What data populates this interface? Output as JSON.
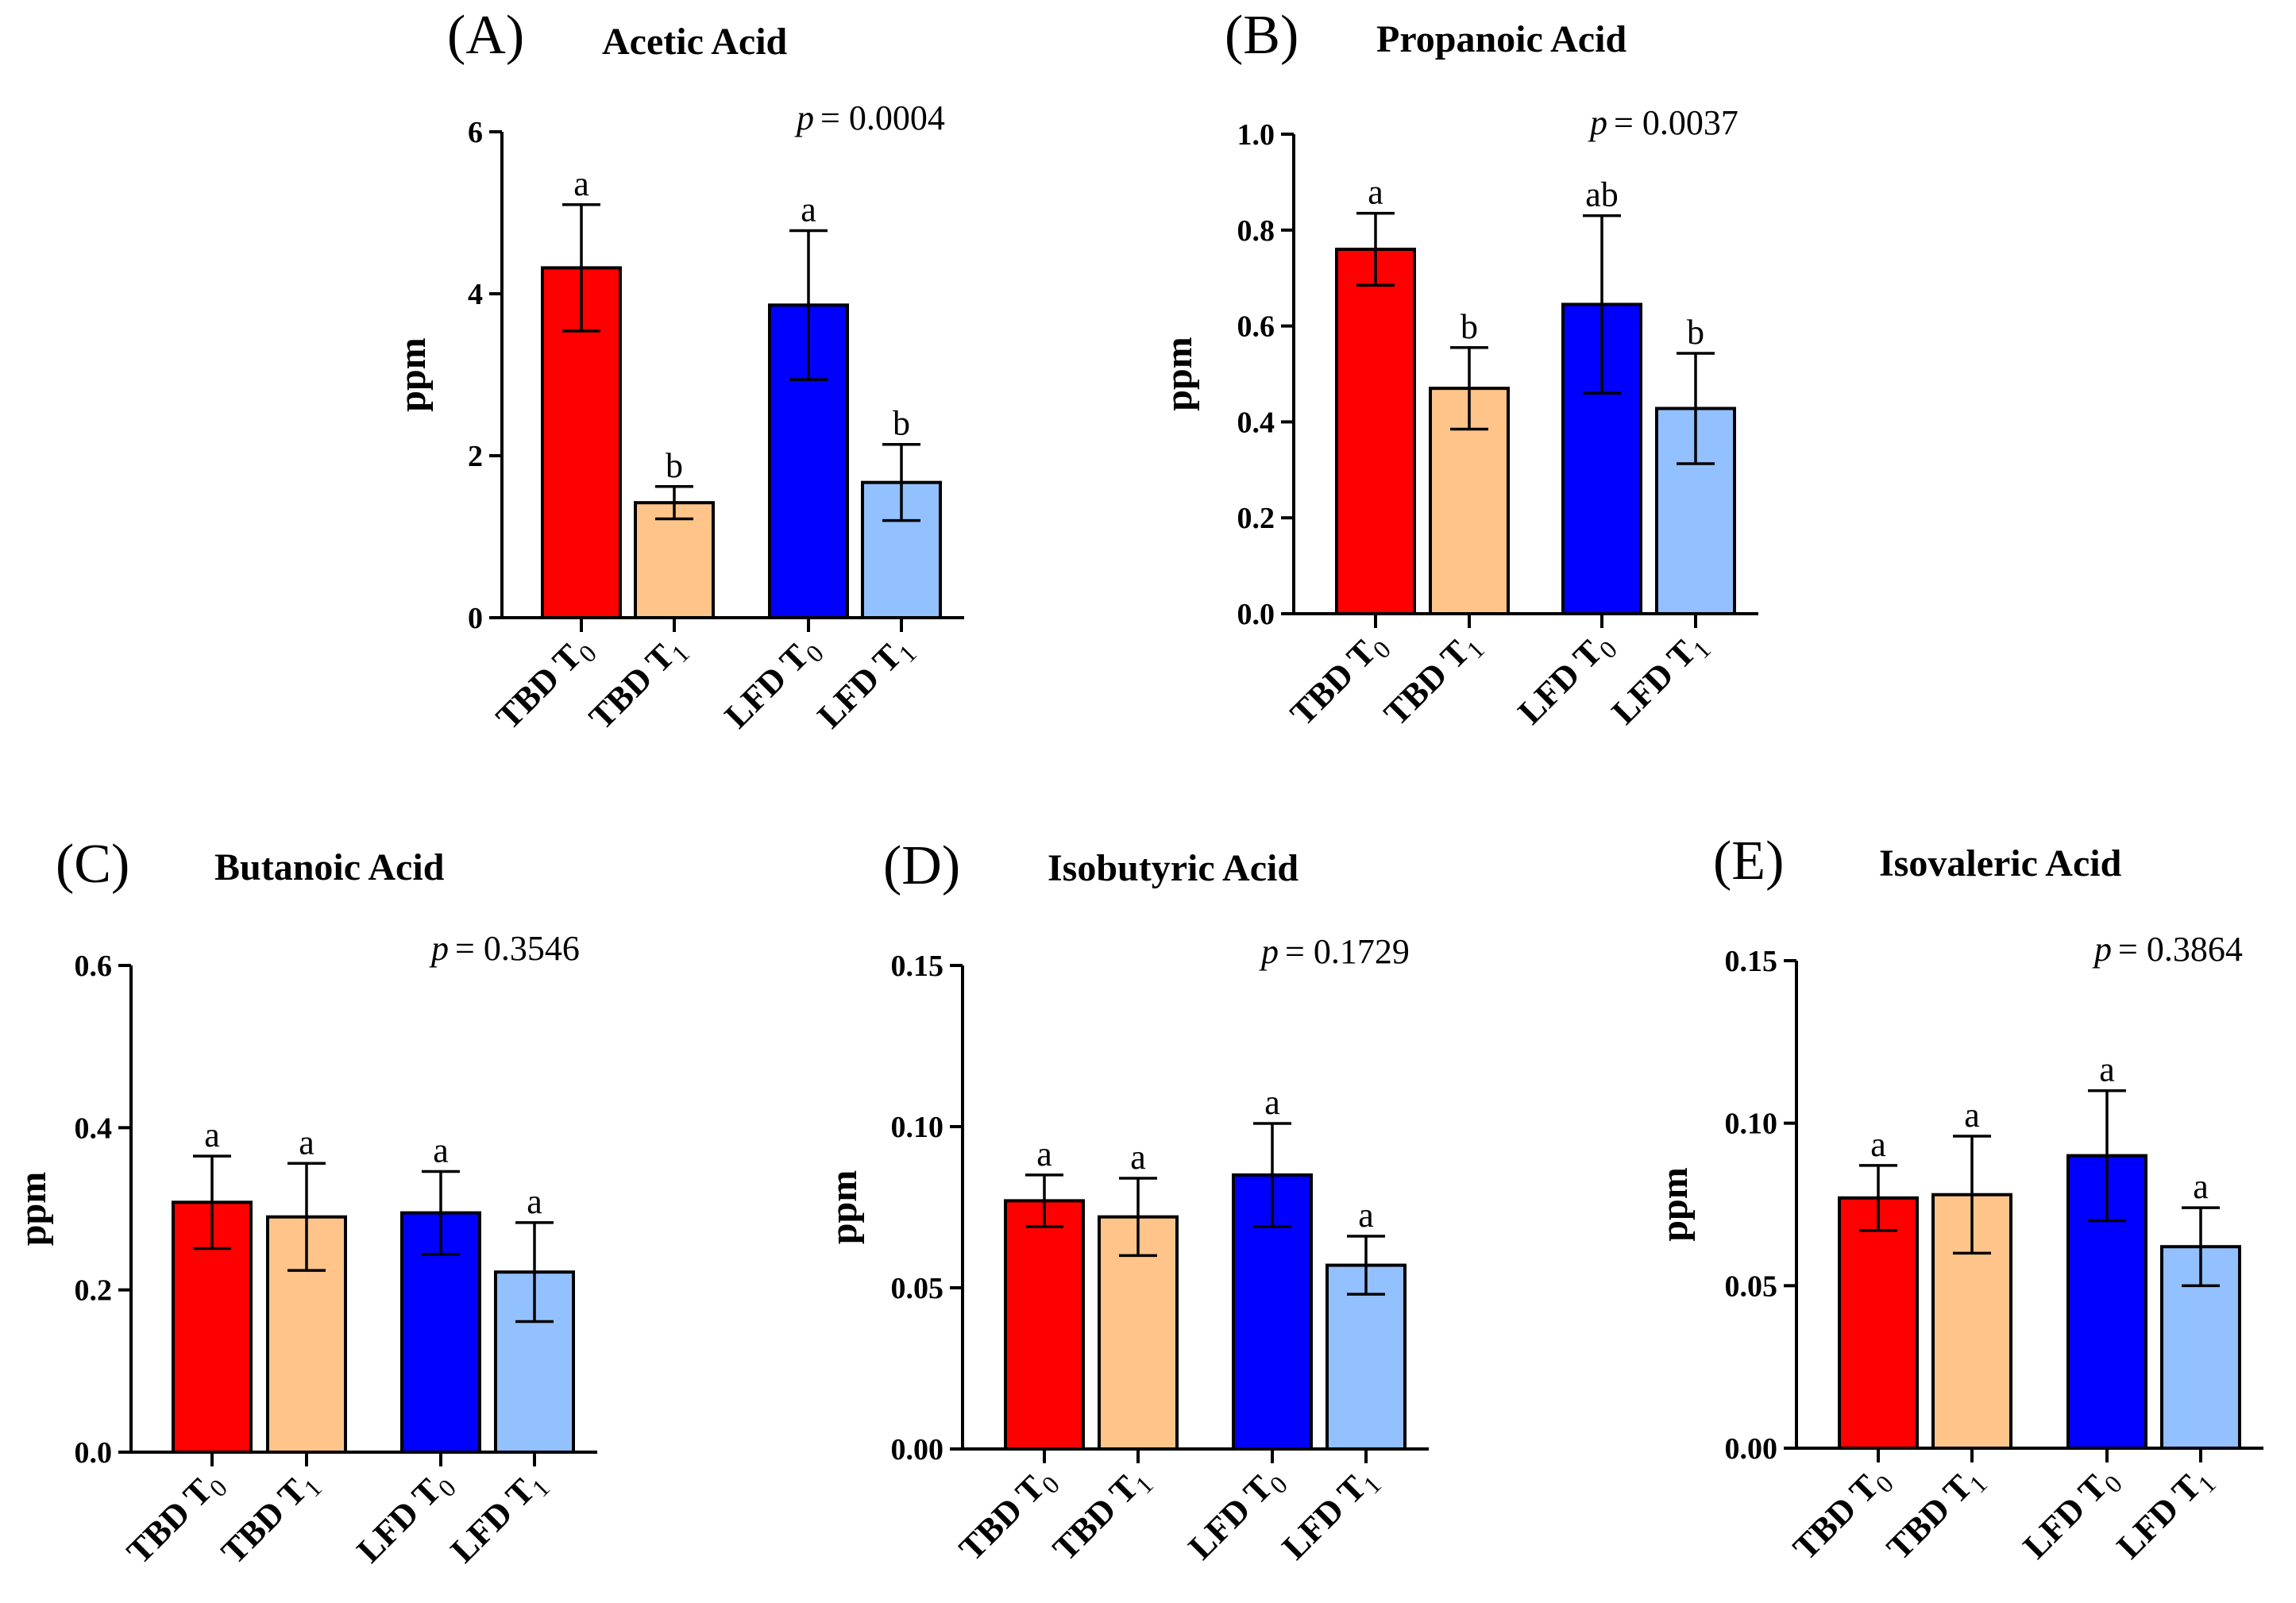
{
  "chart_data": [
    {
      "type": "bar",
      "panel": "(A)",
      "title": "Acetic Acid",
      "p_label": "p",
      "p_value": "= 0.0004",
      "ylabel": "ppm",
      "ylim": [
        0,
        6
      ],
      "yticks": [
        0,
        2,
        4,
        6
      ],
      "ytick_labels": [
        "0",
        "2",
        "4",
        "6"
      ],
      "categories": [
        {
          "main": "TBD T",
          "sub": "0"
        },
        {
          "main": "TBD T",
          "sub": "1"
        },
        {
          "main": "LFD T",
          "sub": "0"
        },
        {
          "main": "LFD T",
          "sub": "1"
        }
      ],
      "values": [
        4.32,
        1.42,
        3.86,
        1.67
      ],
      "errors": [
        0.78,
        0.2,
        0.92,
        0.47
      ],
      "significance": [
        "a",
        "b",
        "a",
        "b"
      ],
      "colors": [
        "#ff0000",
        "#fec48a",
        "#0000ff",
        "#93c0ff"
      ]
    },
    {
      "type": "bar",
      "panel": "(B)",
      "title": "Propanoic Acid",
      "p_label": "p",
      "p_value": "= 0.0037",
      "ylabel": "ppm",
      "ylim": [
        0,
        1.0
      ],
      "yticks": [
        0,
        0.2,
        0.4,
        0.6,
        0.8,
        1.0
      ],
      "ytick_labels": [
        "0.0",
        "0.2",
        "0.4",
        "0.6",
        "0.8",
        "1.0"
      ],
      "categories": [
        {
          "main": "TBD T",
          "sub": "0"
        },
        {
          "main": "TBD T",
          "sub": "1"
        },
        {
          "main": "LFD T",
          "sub": "0"
        },
        {
          "main": "LFD T",
          "sub": "1"
        }
      ],
      "values": [
        0.76,
        0.47,
        0.645,
        0.428
      ],
      "errors": [
        0.075,
        0.085,
        0.185,
        0.115
      ],
      "significance": [
        "a",
        "b",
        "ab",
        "b"
      ],
      "colors": [
        "#ff0000",
        "#fec48a",
        "#0000ff",
        "#93c0ff"
      ]
    },
    {
      "type": "bar",
      "panel": "(C)",
      "title": "Butanoic Acid",
      "p_label": "p",
      "p_value": "= 0.3546",
      "ylabel": "ppm",
      "ylim": [
        0,
        0.6
      ],
      "yticks": [
        0,
        0.2,
        0.4,
        0.6
      ],
      "ytick_labels": [
        "0.0",
        "0.2",
        "0.4",
        "0.6"
      ],
      "categories": [
        {
          "main": "TBD T",
          "sub": "0"
        },
        {
          "main": "TBD T",
          "sub": "1"
        },
        {
          "main": "LFD T",
          "sub": "0"
        },
        {
          "main": "LFD T",
          "sub": "1"
        }
      ],
      "values": [
        0.308,
        0.29,
        0.295,
        0.222
      ],
      "errors": [
        0.057,
        0.066,
        0.051,
        0.061
      ],
      "significance": [
        "a",
        "a",
        "a",
        "a"
      ],
      "colors": [
        "#ff0000",
        "#fec48a",
        "#0000ff",
        "#93c0ff"
      ]
    },
    {
      "type": "bar",
      "panel": "(D)",
      "title": "Isobutyric Acid",
      "p_label": "p",
      "p_value": "= 0.1729",
      "ylabel": "ppm",
      "ylim": [
        0,
        0.15
      ],
      "yticks": [
        0,
        0.05,
        0.1,
        0.15
      ],
      "ytick_labels": [
        "0.00",
        "0.05",
        "0.10",
        "0.15"
      ],
      "categories": [
        {
          "main": "TBD T",
          "sub": "0"
        },
        {
          "main": "TBD T",
          "sub": "1"
        },
        {
          "main": "LFD T",
          "sub": "0"
        },
        {
          "main": "LFD T",
          "sub": "1"
        }
      ],
      "values": [
        0.077,
        0.072,
        0.085,
        0.057
      ],
      "errors": [
        0.008,
        0.012,
        0.016,
        0.009
      ],
      "significance": [
        "a",
        "a",
        "a",
        "a"
      ],
      "colors": [
        "#ff0000",
        "#fec48a",
        "#0000ff",
        "#93c0ff"
      ]
    },
    {
      "type": "bar",
      "panel": "(E)",
      "title": "Isovaleric Acid",
      "p_label": "p",
      "p_value": "= 0.3864",
      "ylabel": "ppm",
      "ylim": [
        0,
        0.15
      ],
      "yticks": [
        0,
        0.05,
        0.1,
        0.15
      ],
      "ytick_labels": [
        "0.00",
        "0.05",
        "0.10",
        "0.15"
      ],
      "categories": [
        {
          "main": "TBD T",
          "sub": "0"
        },
        {
          "main": "TBD T",
          "sub": "1"
        },
        {
          "main": "LFD T",
          "sub": "0"
        },
        {
          "main": "LFD T",
          "sub": "1"
        }
      ],
      "values": [
        0.077,
        0.078,
        0.09,
        0.062
      ],
      "errors": [
        0.01,
        0.018,
        0.02,
        0.012
      ],
      "significance": [
        "a",
        "a",
        "a",
        "a"
      ],
      "colors": [
        "#ff0000",
        "#fec48a",
        "#0000ff",
        "#93c0ff"
      ]
    }
  ]
}
